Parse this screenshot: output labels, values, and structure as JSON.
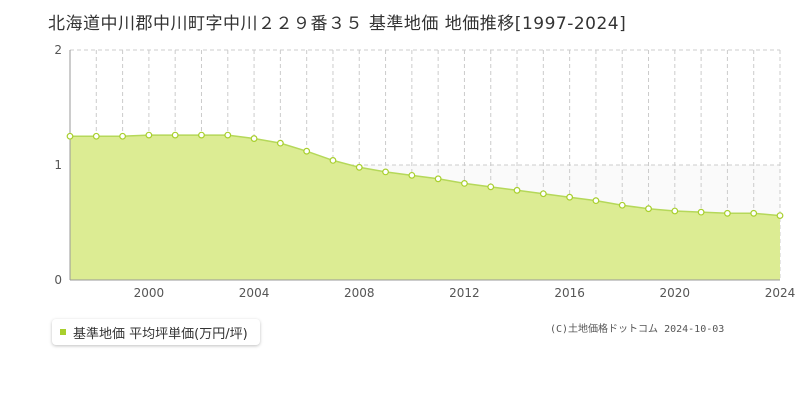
{
  "title": "北海道中川郡中川町字中川２２９番３５ 基準地価 地価推移[1997-2024]",
  "legend_label": "基準地価 平均坪単価(万円/坪)",
  "copyright": "(C)土地価格ドットコム 2024-10-03",
  "colors": {
    "fill": "#dcec93",
    "line": "#b5d85a",
    "marker_stroke": "#a8cf2d",
    "grid": "#cccccc"
  },
  "chart_data": {
    "type": "area",
    "title": "北海道中川郡中川町字中川２２９番３５ 基準地価 地価推移[1997-2024]",
    "xlabel": "",
    "ylabel": "",
    "xlim": [
      1997,
      2024
    ],
    "ylim": [
      0,
      2
    ],
    "x_ticks": [
      "2000",
      "2004",
      "2008",
      "2012",
      "2016",
      "2020",
      "2024"
    ],
    "y_ticks": [
      "0",
      "1",
      "2"
    ],
    "grid": true,
    "legend_position": "bottom-left",
    "series": [
      {
        "name": "基準地価 平均坪単価(万円/坪)",
        "x": [
          1997,
          1998,
          1999,
          2000,
          2001,
          2002,
          2003,
          2004,
          2005,
          2006,
          2007,
          2008,
          2009,
          2010,
          2011,
          2012,
          2013,
          2014,
          2015,
          2016,
          2017,
          2018,
          2019,
          2020,
          2021,
          2022,
          2023,
          2024
        ],
        "values": [
          1.25,
          1.25,
          1.25,
          1.26,
          1.26,
          1.26,
          1.26,
          1.23,
          1.19,
          1.12,
          1.04,
          0.98,
          0.94,
          0.91,
          0.88,
          0.84,
          0.81,
          0.78,
          0.75,
          0.72,
          0.69,
          0.65,
          0.62,
          0.6,
          0.59,
          0.58,
          0.58,
          0.56
        ]
      }
    ]
  }
}
